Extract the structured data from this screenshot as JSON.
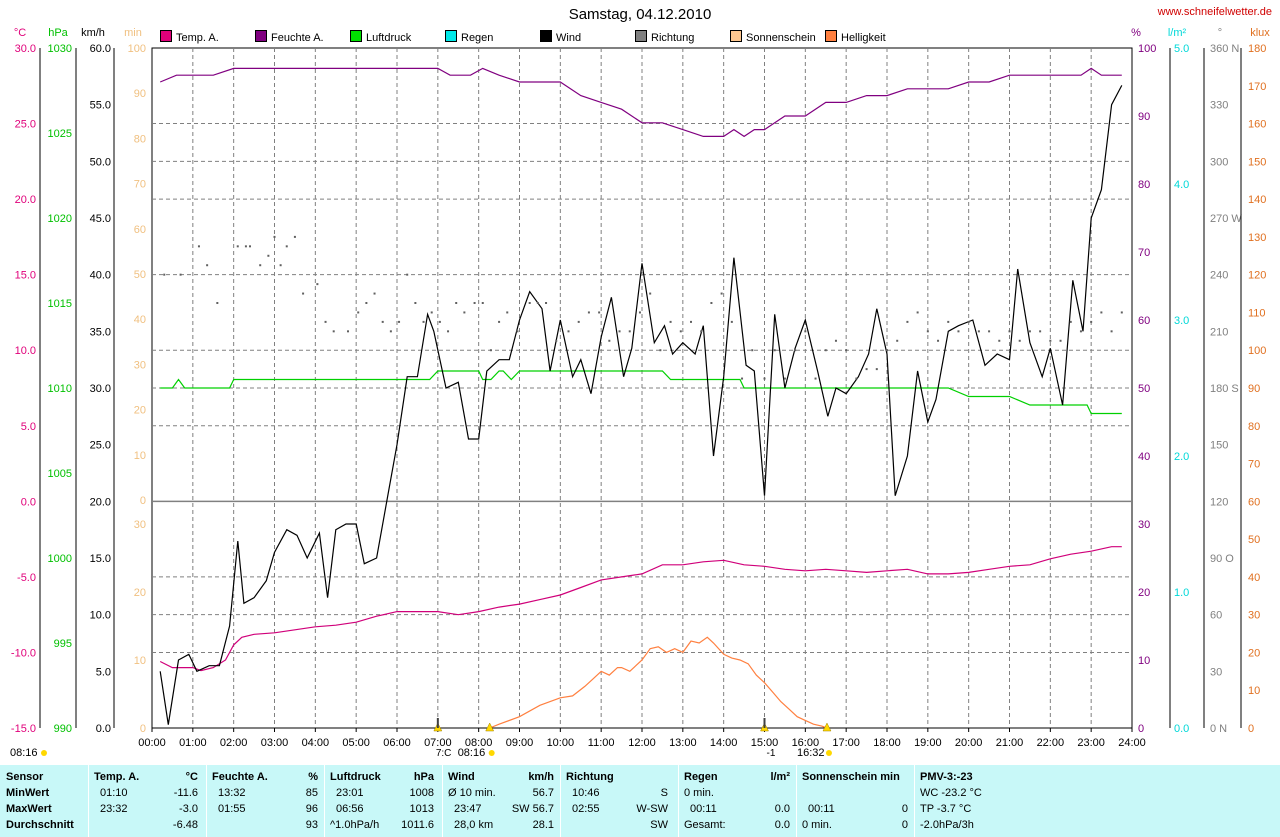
{
  "header": {
    "title": "Samstag, 04.12.2010",
    "site": "www.schneifelwetter.de"
  },
  "legend": [
    {
      "label": "Temp. A.",
      "color": "#e0007a"
    },
    {
      "label": "Feuchte A.",
      "color": "#800080"
    },
    {
      "label": "Luftdruck",
      "color": "#00e000"
    },
    {
      "label": "Regen",
      "color": "#00e8e8"
    },
    {
      "label": "Wind",
      "color": "#000000"
    },
    {
      "label": "Richtung",
      "color": "#808080"
    },
    {
      "label": "Sonnenschein",
      "color": "#ffc890"
    },
    {
      "label": "Helligkeit",
      "color": "#ff8040"
    }
  ],
  "axes": {
    "temp": {
      "unit": "°C",
      "color": "#e0007a",
      "ticks": [
        "30.0",
        "25.0",
        "20.0",
        "15.0",
        "10.0",
        "5.0",
        "0.0",
        "-5.0",
        "-10.0",
        "-15.0"
      ]
    },
    "pressure": {
      "unit": "hPa",
      "color": "#00c000",
      "ticks": [
        "1030",
        "1025",
        "1020",
        "1015",
        "1010",
        "1005",
        "1000",
        "995",
        "990"
      ]
    },
    "wind": {
      "unit": "km/h",
      "color": "#000000",
      "ticks": [
        "60.0",
        "55.0",
        "50.0",
        "45.0",
        "40.0",
        "35.0",
        "30.0",
        "25.0",
        "20.0",
        "15.0",
        "10.0",
        "5.0",
        "0.0"
      ]
    },
    "sunmin": {
      "unit": "min",
      "color": "#f0c080",
      "ticks": [
        "100",
        "90",
        "80",
        "70",
        "60",
        "50",
        "40",
        "30",
        "20",
        "10",
        "0"
      ]
    },
    "humidity": {
      "unit": "%",
      "color": "#800080",
      "ticks": [
        "100",
        "90",
        "80",
        "70",
        "60",
        "50",
        "40",
        "30",
        "20",
        "10",
        "0"
      ]
    },
    "rain": {
      "unit": "l/m²",
      "color": "#00d8d8",
      "ticks": [
        "5.0",
        "4.0",
        "3.0",
        "2.0",
        "1.0",
        "0.0"
      ]
    },
    "direction": {
      "unit": "°",
      "color": "#808080",
      "ticks": [
        "360 N",
        "330",
        "300",
        "270 W",
        "240",
        "210",
        "180 S",
        "150",
        "120",
        "90 O",
        "60",
        "30",
        "0 N"
      ]
    },
    "lux": {
      "unit": "klux",
      "color": "#e07020",
      "ticks": [
        "180",
        "170",
        "160",
        "150",
        "140",
        "130",
        "120",
        "110",
        "100",
        "90",
        "80",
        "70",
        "60",
        "50",
        "40",
        "30",
        "20",
        "10",
        "0"
      ]
    },
    "time": [
      "00:00",
      "01:00",
      "02:00",
      "03:00",
      "04:00",
      "05:00",
      "06:00",
      "07:00",
      "08:00",
      "09:00",
      "10:00",
      "11:00",
      "12:00",
      "13:00",
      "14:00",
      "15:00",
      "16:00",
      "17:00",
      "18:00",
      "19:00",
      "20:00",
      "21:00",
      "22:00",
      "23:00",
      "24:00"
    ]
  },
  "sun_markers": {
    "sunrise_left": "08:16",
    "sunrise": "08:16",
    "sunset": "16:32",
    "mark_7": "7:C",
    "mark_15": "-1"
  },
  "chart_data": {
    "type": "line",
    "x_unit": "hours",
    "xlim": [
      0,
      24
    ],
    "series": [
      {
        "name": "Wind",
        "unit": "km/h",
        "x": [
          0.2,
          0.4,
          0.65,
          0.9,
          1.1,
          1.4,
          1.65,
          1.9,
          2.1,
          2.25,
          2.5,
          2.8,
          3.0,
          3.3,
          3.55,
          3.8,
          4.1,
          4.3,
          4.5,
          4.75,
          5.0,
          5.2,
          5.5,
          5.8,
          6.0,
          6.25,
          6.5,
          6.75,
          6.9,
          7.2,
          7.5,
          7.75,
          8.0,
          8.2,
          8.5,
          8.75,
          9.0,
          9.25,
          9.55,
          9.75,
          10.0,
          10.3,
          10.5,
          10.75,
          11.0,
          11.25,
          11.55,
          11.75,
          12.0,
          12.3,
          12.55,
          12.75,
          13.0,
          13.3,
          13.5,
          13.75,
          14.0,
          14.25,
          14.55,
          14.75,
          15.0,
          15.25,
          15.5,
          15.75,
          16.0,
          16.3,
          16.55,
          16.75,
          17.0,
          17.3,
          17.55,
          17.75,
          18.0,
          18.2,
          18.5,
          18.75,
          19.0,
          19.2,
          19.5,
          19.75,
          20.1,
          20.4,
          20.7,
          21.0,
          21.2,
          21.5,
          21.8,
          22.0,
          22.3,
          22.55,
          22.8,
          23.0,
          23.25,
          23.5,
          23.75
        ],
        "y": [
          5.0,
          0.3,
          6.0,
          6.5,
          5.0,
          5.5,
          5.5,
          9.0,
          16.5,
          11.0,
          11.5,
          13.0,
          15.5,
          17.5,
          17.0,
          15.0,
          17.2,
          11.5,
          17.5,
          18.0,
          18.0,
          14.5,
          15.0,
          21.0,
          25.0,
          31.0,
          31.0,
          36.5,
          35.0,
          30.0,
          30.5,
          25.5,
          25.5,
          31.5,
          32.5,
          32.5,
          36.0,
          38.5,
          37.0,
          31.5,
          36.0,
          31.0,
          32.5,
          29.5,
          34.5,
          38.0,
          31.0,
          33.5,
          41.0,
          34.0,
          35.5,
          33.0,
          34.0,
          33.0,
          35.5,
          24.0,
          31.0,
          41.5,
          32.0,
          31.5,
          20.5,
          36.5,
          30.0,
          33.5,
          36.0,
          31.5,
          27.5,
          30.0,
          29.5,
          31.0,
          33.0,
          37.0,
          33.0,
          20.5,
          24.0,
          31.5,
          27.0,
          29.0,
          35.0,
          35.5,
          36.0,
          32.0,
          33.0,
          32.5,
          40.5,
          34.0,
          31.0,
          33.5,
          28.5,
          39.5,
          35.0,
          45.0,
          47.5,
          55.0,
          56.7
        ]
      },
      {
        "name": "Temp. A.",
        "unit": "°C",
        "x": [
          0.2,
          0.5,
          1.0,
          1.2,
          1.5,
          1.8,
          2.0,
          2.2,
          2.5,
          3.0,
          3.5,
          4.0,
          4.5,
          5.0,
          5.5,
          6.0,
          6.5,
          7.0,
          7.5,
          8.0,
          8.5,
          9.0,
          9.5,
          10.0,
          10.5,
          11.0,
          11.5,
          12.0,
          12.5,
          13.0,
          13.5,
          14.0,
          14.5,
          15.0,
          15.5,
          16.0,
          16.5,
          17.0,
          17.5,
          18.0,
          18.5,
          19.0,
          19.5,
          20.0,
          20.5,
          21.0,
          21.5,
          22.0,
          22.5,
          23.0,
          23.5,
          23.75
        ],
        "y": [
          -10.6,
          -11.0,
          -11.0,
          -11.2,
          -11.0,
          -10.5,
          -9.5,
          -9.0,
          -8.8,
          -8.7,
          -8.5,
          -8.3,
          -8.2,
          -8.0,
          -7.6,
          -7.3,
          -7.3,
          -7.3,
          -7.5,
          -7.3,
          -7.0,
          -6.8,
          -6.5,
          -6.2,
          -5.7,
          -5.2,
          -5.0,
          -4.8,
          -4.2,
          -4.2,
          -4.0,
          -3.9,
          -4.2,
          -4.3,
          -4.5,
          -4.6,
          -4.5,
          -4.6,
          -4.7,
          -4.6,
          -4.5,
          -4.8,
          -4.8,
          -4.7,
          -4.5,
          -4.3,
          -4.2,
          -3.8,
          -3.5,
          -3.3,
          -3.0,
          -3.0
        ]
      },
      {
        "name": "Feuchte A.",
        "unit": "%",
        "x": [
          0.2,
          0.6,
          1.0,
          1.5,
          2.0,
          3.0,
          4.0,
          5.0,
          6.0,
          7.0,
          7.3,
          7.8,
          8.1,
          8.5,
          9.0,
          9.5,
          10.0,
          10.5,
          11.0,
          11.5,
          12.0,
          12.5,
          13.0,
          13.5,
          13.75,
          14.0,
          14.25,
          14.5,
          14.75,
          15.0,
          15.5,
          16.0,
          16.5,
          17.0,
          17.5,
          18.0,
          18.5,
          19.0,
          19.5,
          20.0,
          20.5,
          21.0,
          21.5,
          22.0,
          22.5,
          22.75,
          23.0,
          23.25,
          23.5,
          23.75
        ],
        "y": [
          95,
          96,
          96,
          96,
          97,
          97,
          97,
          97,
          97,
          97,
          96,
          96,
          97,
          96,
          95,
          95,
          95,
          93,
          92,
          91,
          89,
          89,
          88,
          87,
          87,
          87,
          88,
          87,
          88,
          88,
          90,
          90,
          92,
          92,
          93,
          93,
          94,
          94,
          94,
          95,
          95,
          96,
          96,
          96,
          96,
          96,
          97,
          96,
          96,
          96
        ]
      },
      {
        "name": "Luftdruck",
        "unit": "hPa",
        "x": [
          0.2,
          0.5,
          0.65,
          0.8,
          1.0,
          1.5,
          1.9,
          2.0,
          2.5,
          3.0,
          4.0,
          5.0,
          6.0,
          6.5,
          6.8,
          7.0,
          7.5,
          7.8,
          8.0,
          8.1,
          8.3,
          8.5,
          8.6,
          8.8,
          9.0,
          9.5,
          10.0,
          11.0,
          12.0,
          12.5,
          12.7,
          13.0,
          14.0,
          14.4,
          14.5,
          15.0,
          16.0,
          17.0,
          18.0,
          19.0,
          19.5,
          20.0,
          20.5,
          21.0,
          21.5,
          22.0,
          22.5,
          22.9,
          23.0,
          23.5,
          23.75
        ],
        "y": [
          1010,
          1010,
          1010.5,
          1010,
          1010,
          1010,
          1010,
          1010.5,
          1010.5,
          1010.5,
          1010.5,
          1010.5,
          1010.5,
          1010.5,
          1010.5,
          1011,
          1011,
          1011,
          1011,
          1010.5,
          1010.5,
          1011,
          1011,
          1010.5,
          1011,
          1011,
          1011,
          1011,
          1011,
          1011,
          1010.5,
          1010.5,
          1010.5,
          1010.5,
          1010,
          1010,
          1010,
          1010,
          1010,
          1010,
          1010,
          1009.5,
          1009.5,
          1009.5,
          1009,
          1009,
          1009,
          1009,
          1008.5,
          1008.5,
          1008.5
        ]
      },
      {
        "name": "Helligkeit",
        "unit": "klux",
        "x": [
          8.27,
          8.5,
          9.0,
          9.5,
          10.0,
          10.3,
          10.6,
          10.8,
          11.0,
          11.2,
          11.4,
          11.5,
          11.7,
          12.0,
          12.2,
          12.4,
          12.6,
          12.8,
          13.0,
          13.2,
          13.4,
          13.6,
          13.75,
          14.0,
          14.2,
          14.4,
          14.6,
          14.8,
          15.0,
          15.2,
          15.4,
          15.6,
          15.8,
          16.0,
          16.2,
          16.4,
          16.53
        ],
        "y": [
          0,
          1,
          3,
          6,
          8,
          8.5,
          11,
          13,
          15,
          14,
          16,
          16,
          15,
          18,
          21,
          21.5,
          20,
          21,
          20,
          23,
          22.5,
          24,
          22.5,
          19.5,
          18.5,
          18,
          17,
          14,
          12,
          9.5,
          7,
          5,
          3,
          2,
          1,
          0.5,
          0
        ]
      },
      {
        "name": "Richtung",
        "unit": "°",
        "x": [
          0.3,
          0.7,
          1.15,
          1.35,
          1.6,
          2.1,
          2.3,
          2.4,
          2.65,
          2.85,
          3.0,
          3.15,
          3.3,
          3.5,
          3.7,
          4.05,
          4.25,
          4.45,
          4.8,
          5.05,
          5.25,
          5.45,
          5.65,
          5.85,
          6.05,
          6.25,
          6.45,
          6.65,
          6.85,
          7.05,
          7.25,
          7.45,
          7.65,
          7.9,
          8.1,
          8.3,
          8.5,
          8.7,
          8.95,
          9.25,
          9.45,
          9.65,
          9.9,
          10.2,
          10.45,
          10.7,
          10.95,
          11.2,
          11.45,
          11.7,
          11.95,
          12.2,
          12.45,
          12.7,
          12.95,
          13.2,
          13.45,
          13.7,
          13.95,
          14.2,
          14.45,
          14.7,
          15.0,
          15.25,
          15.5,
          15.75,
          16.0,
          16.25,
          16.5,
          16.75,
          17.0,
          17.25,
          17.5,
          17.75,
          18.0,
          18.25,
          18.5,
          18.75,
          19.0,
          19.25,
          19.5,
          19.75,
          20.0,
          20.25,
          20.5,
          20.75,
          21.0,
          21.25,
          21.5,
          21.75,
          22.0,
          22.25,
          22.5,
          22.75,
          23.0,
          23.25,
          23.5,
          23.75
        ],
        "y": [
          240,
          240,
          255,
          245,
          225,
          255,
          255,
          255,
          245,
          250,
          260,
          245,
          255,
          260,
          230,
          235,
          215,
          210,
          210,
          220,
          225,
          230,
          215,
          210,
          215,
          240,
          225,
          215,
          220,
          215,
          210,
          225,
          220,
          225,
          225,
          200,
          215,
          220,
          210,
          225,
          225,
          225,
          205,
          210,
          215,
          220,
          220,
          205,
          210,
          210,
          220,
          230,
          200,
          215,
          210,
          215,
          210,
          225,
          230,
          215,
          185,
          200,
          185,
          200,
          185,
          200,
          210,
          185,
          200,
          205,
          200,
          185,
          190,
          190,
          200,
          205,
          215,
          220,
          210,
          205,
          215,
          210,
          215,
          210,
          210,
          205,
          210,
          205,
          210,
          210,
          205,
          205,
          215,
          210,
          215,
          220,
          210,
          220
        ]
      }
    ],
    "sun_minutes_ticks": "0-100",
    "grid": "dashed"
  },
  "stats": {
    "headers": {
      "sensor": "Sensor",
      "temp": "Temp. A.",
      "temp_unit": "°C",
      "hum": "Feuchte A.",
      "hum_unit": "%",
      "press": "Luftdruck",
      "press_unit": "hPa",
      "wind": "Wind",
      "wind_unit": "km/h",
      "dir": "Richtung",
      "rain": "Regen",
      "rain_unit": "l/m²",
      "sun": "Sonnenschein min",
      "pmv": "PMV-3:-23"
    },
    "rows": [
      {
        "label": "MinWert",
        "temp_t": "01:10",
        "temp_v": "-11.6",
        "hum_t": "13:32",
        "hum_v": "85",
        "press_t": "23:01",
        "press_v": "1008",
        "wind_t": "Ø 10 min.",
        "wind_v": "56.7",
        "dir_t": "10:46",
        "dir_v": "S",
        "rain_t": "0 min.",
        "rain_v": "",
        "sun_t": "",
        "sun_v": "",
        "pmv": "WC -23.2 °C"
      },
      {
        "label": "MaxWert",
        "temp_t": "23:32",
        "temp_v": "-3.0",
        "hum_t": "01:55",
        "hum_v": "96",
        "press_t": "06:56",
        "press_v": "1013",
        "wind_t": "23:47",
        "wind_v": "SW 56.7",
        "dir_t": "02:55",
        "dir_v": "W-SW",
        "rain_t": "00:11",
        "rain_v": "0.0",
        "sun_t": "00:11",
        "sun_v": "0",
        "pmv": "TP -3.7 °C"
      },
      {
        "label": "Durchschnitt",
        "temp_t": "",
        "temp_v": "-6.48",
        "hum_t": "",
        "hum_v": "93",
        "press_t": "^1.0hPa/h",
        "press_v": "1011.6",
        "wind_t": "28,0 km",
        "wind_v": "28.1",
        "dir_t": "",
        "dir_v": "SW",
        "rain_t": "Gesamt:",
        "rain_v": "0.0",
        "sun_t": "0 min.",
        "sun_v": "0",
        "pmv": "-2.0hPa/3h"
      }
    ]
  }
}
